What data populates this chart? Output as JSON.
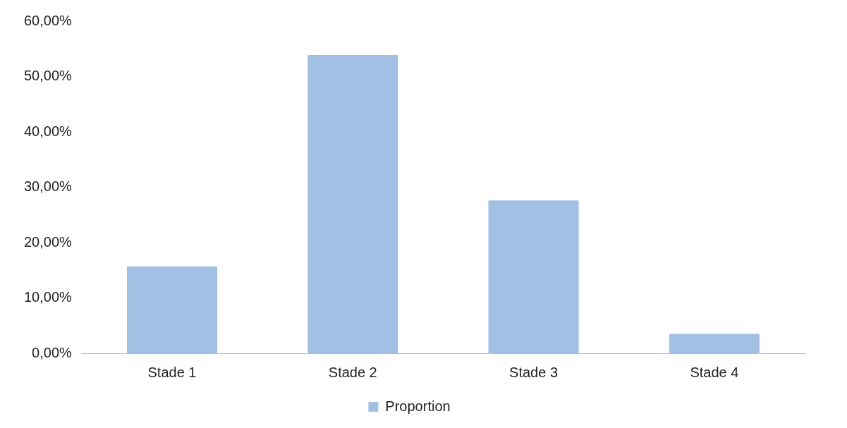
{
  "chart_data": {
    "type": "bar",
    "categories": [
      "Stade 1",
      "Stade 2",
      "Stade 3",
      "Stade 4"
    ],
    "series": [
      {
        "name": "Proportion",
        "color": "#a2c0e4",
        "values": [
          15.7,
          53.9,
          27.6,
          3.5
        ]
      }
    ],
    "ylim": [
      0,
      60
    ],
    "yticks": [
      {
        "value": 0,
        "label": "0,00%"
      },
      {
        "value": 10,
        "label": "10,00%"
      },
      {
        "value": 20,
        "label": "20,00%"
      },
      {
        "value": 30,
        "label": "30,00%"
      },
      {
        "value": 40,
        "label": "40,00%"
      },
      {
        "value": 50,
        "label": "50,00%"
      },
      {
        "value": 60,
        "label": "60,00%"
      }
    ],
    "grid": false,
    "legend": "bottom"
  }
}
